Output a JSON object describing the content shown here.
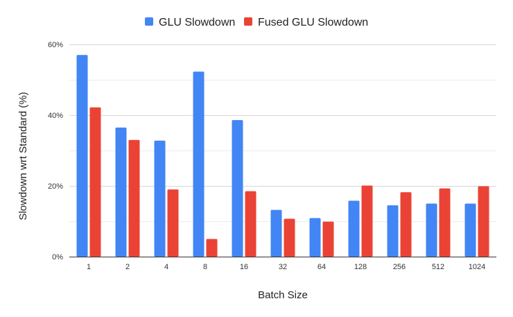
{
  "chart_data": {
    "type": "bar",
    "categories": [
      "1",
      "2",
      "4",
      "8",
      "16",
      "32",
      "64",
      "128",
      "256",
      "512",
      "1024"
    ],
    "series": [
      {
        "name": "GLU Slowdown",
        "color": "#4285f4",
        "values": [
          57.0,
          36.5,
          32.8,
          52.3,
          38.6,
          13.2,
          10.9,
          15.8,
          14.5,
          15.0,
          15.0
        ]
      },
      {
        "name": "Fused GLU Slowdown",
        "color": "#ea4335",
        "values": [
          42.2,
          33.0,
          19.0,
          5.0,
          18.5,
          10.7,
          9.9,
          20.1,
          18.2,
          19.3,
          19.9
        ]
      }
    ],
    "xlabel": "Batch Size",
    "ylabel": "Slowdown wrt Standard (%)",
    "ylim": [
      0,
      60
    ],
    "yticks": [
      "0%",
      "20%",
      "40%",
      "60%"
    ],
    "grid": true,
    "legend_position": "top-center"
  }
}
